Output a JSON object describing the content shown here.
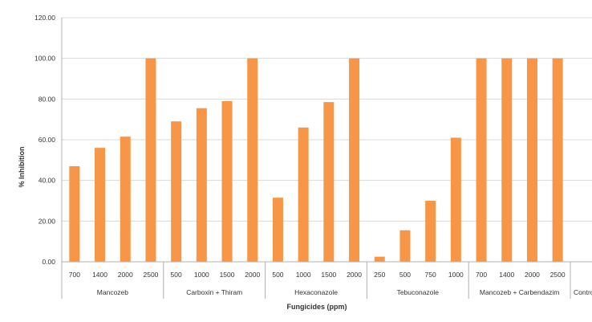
{
  "chart_data": {
    "type": "bar",
    "title": "",
    "xlabel": "Fungicides (ppm)",
    "ylabel": "% Inhibition",
    "ylim": [
      0,
      120
    ],
    "yticks": [
      "0.00",
      "20.00",
      "40.00",
      "60.00",
      "80.00",
      "100.00",
      "120.00"
    ],
    "grid": true,
    "legend": "none",
    "bar_color": "#F79646",
    "groups": [
      {
        "name": "Mancozeb",
        "categories": [
          "700",
          "1400",
          "2000",
          "2500"
        ],
        "values": [
          47,
          56,
          61.5,
          100
        ]
      },
      {
        "name": "Carboxin + Thiram",
        "categories": [
          "500",
          "1000",
          "1500",
          "2000"
        ],
        "values": [
          69,
          75.5,
          79,
          100
        ]
      },
      {
        "name": "Hexaconazole",
        "categories": [
          "500",
          "1000",
          "1500",
          "2000"
        ],
        "values": [
          31.5,
          66,
          78.5,
          100
        ]
      },
      {
        "name": "Tebuconazole",
        "categories": [
          "250",
          "500",
          "750",
          "1000"
        ],
        "values": [
          2.5,
          15.5,
          30,
          61
        ]
      },
      {
        "name": "Mancozeb + Carbendazim",
        "categories": [
          "700",
          "1400",
          "2000",
          "2500"
        ],
        "values": [
          100,
          100,
          100,
          100
        ]
      },
      {
        "name": "Control",
        "categories": [
          ""
        ],
        "values": [
          0
        ]
      }
    ]
  }
}
